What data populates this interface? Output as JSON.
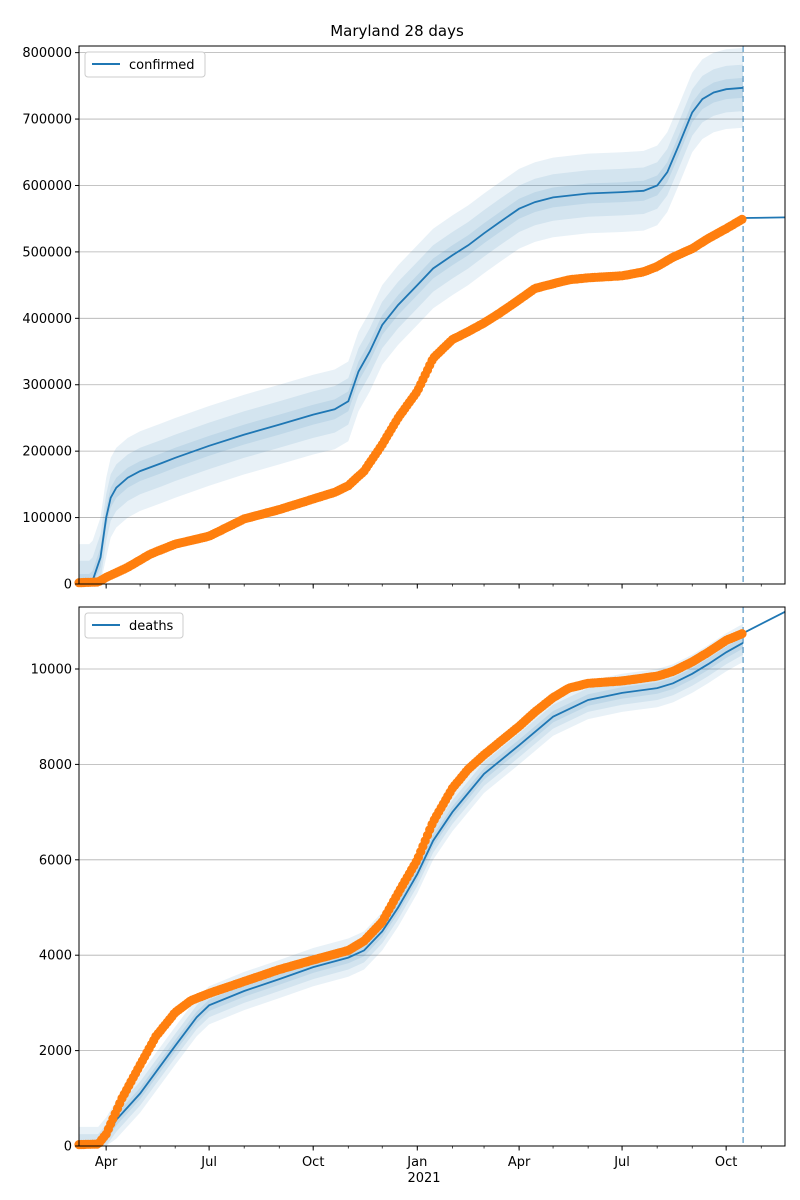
{
  "colors": {
    "model": "#1f77b4",
    "band": "#1f77b4",
    "observed": "#ff7f0e",
    "grid": "#b0b0b0",
    "axis": "#000000"
  },
  "x_axis": {
    "date_range": [
      "2020-03-08",
      "2021-11-22"
    ],
    "ticks": [
      {
        "date": "2020-04-01",
        "label": "Apr"
      },
      {
        "date": "2020-07-01",
        "label": "Jul"
      },
      {
        "date": "2020-10-01",
        "label": "Oct"
      },
      {
        "date": "2021-01-01",
        "label": "Jan"
      },
      {
        "date": "2021-04-01",
        "label": "Apr"
      },
      {
        "date": "2021-07-01",
        "label": "Jul"
      },
      {
        "date": "2021-10-01",
        "label": "Oct"
      }
    ],
    "year_label": "2021",
    "forecast_date": "2021-10-16"
  },
  "chart_data": [
    {
      "type": "line",
      "title": "Maryland 28 days",
      "legend": {
        "label": "confirmed",
        "placement": "top-left"
      },
      "ylim": [
        0,
        810000
      ],
      "yticks": [
        "0",
        "100000",
        "200000",
        "300000",
        "400000",
        "500000",
        "600000",
        "700000",
        "800000"
      ],
      "grid": "horizontal",
      "model_series": {
        "name": "confirmed",
        "x": [
          "2020-03-08",
          "2020-03-17",
          "2020-03-20",
          "2020-03-27",
          "2020-04-01",
          "2020-04-05",
          "2020-04-10",
          "2020-04-20",
          "2020-05-01",
          "2020-05-20",
          "2020-06-01",
          "2020-07-01",
          "2020-08-01",
          "2020-09-01",
          "2020-10-01",
          "2020-10-20",
          "2020-11-01",
          "2020-11-10",
          "2020-11-20",
          "2020-12-01",
          "2020-12-15",
          "2021-01-01",
          "2021-01-15",
          "2021-02-01",
          "2021-02-15",
          "2021-03-01",
          "2021-03-15",
          "2021-04-01",
          "2021-04-15",
          "2021-05-01",
          "2021-06-01",
          "2021-07-01",
          "2021-07-20",
          "2021-08-01",
          "2021-08-10",
          "2021-08-20",
          "2021-09-01",
          "2021-09-10",
          "2021-09-20",
          "2021-10-01",
          "2021-10-16"
        ],
        "values": [
          0,
          0,
          5000,
          40000,
          100000,
          130000,
          145000,
          160000,
          170000,
          182000,
          190000,
          208000,
          225000,
          240000,
          255000,
          263000,
          275000,
          320000,
          350000,
          390000,
          420000,
          450000,
          475000,
          495000,
          510000,
          528000,
          545000,
          565000,
          575000,
          582000,
          588000,
          590000,
          592000,
          600000,
          620000,
          660000,
          710000,
          730000,
          740000,
          745000,
          747000
        ]
      },
      "band_halfwidths": [
        15000,
        35000,
        60000
      ],
      "observed_series": {
        "name": "observed",
        "x": [
          "2020-03-08",
          "2020-03-25",
          "2020-04-01",
          "2020-04-20",
          "2020-05-10",
          "2020-06-01",
          "2020-07-01",
          "2020-08-01",
          "2020-09-01",
          "2020-10-01",
          "2020-10-20",
          "2020-11-01",
          "2020-11-15",
          "2020-12-01",
          "2020-12-15",
          "2021-01-01",
          "2021-01-15",
          "2021-02-01",
          "2021-02-15",
          "2021-03-01",
          "2021-03-15",
          "2021-04-01",
          "2021-04-15",
          "2021-05-01",
          "2021-05-15",
          "2021-06-01",
          "2021-07-01",
          "2021-07-20",
          "2021-08-01",
          "2021-08-15",
          "2021-09-01",
          "2021-09-15",
          "2021-10-01",
          "2021-10-16"
        ],
        "values": [
          2000,
          3000,
          10000,
          25000,
          45000,
          60000,
          72000,
          98000,
          112000,
          128000,
          138000,
          148000,
          170000,
          210000,
          250000,
          290000,
          340000,
          368000,
          380000,
          393000,
          408000,
          428000,
          445000,
          452000,
          458000,
          461000,
          464000,
          470000,
          478000,
          492000,
          505000,
          520000,
          535000,
          550000
        ]
      },
      "tail_series": {
        "x": [
          "2021-10-16",
          "2021-11-22"
        ],
        "values": [
          551000,
          552000
        ]
      }
    },
    {
      "type": "line",
      "title": "",
      "legend": {
        "label": "deaths",
        "placement": "top-left"
      },
      "ylim": [
        0,
        11300
      ],
      "yticks": [
        "0",
        "2000",
        "4000",
        "6000",
        "8000",
        "10000"
      ],
      "grid": "horizontal",
      "model_series": {
        "name": "deaths",
        "x": [
          "2020-03-08",
          "2020-03-25",
          "2020-04-01",
          "2020-04-10",
          "2020-05-01",
          "2020-06-01",
          "2020-06-20",
          "2020-07-01",
          "2020-08-01",
          "2020-09-01",
          "2020-10-01",
          "2020-11-01",
          "2020-11-15",
          "2020-12-01",
          "2020-12-15",
          "2021-01-01",
          "2021-01-15",
          "2021-02-01",
          "2021-02-15",
          "2021-03-01",
          "2021-04-01",
          "2021-05-01",
          "2021-06-01",
          "2021-07-01",
          "2021-08-01",
          "2021-08-15",
          "2021-09-01",
          "2021-09-15",
          "2021-10-01",
          "2021-10-16"
        ],
        "values": [
          0,
          0,
          200,
          550,
          1100,
          2100,
          2700,
          2950,
          3250,
          3500,
          3750,
          3950,
          4100,
          4500,
          5000,
          5700,
          6400,
          7000,
          7400,
          7800,
          8400,
          9000,
          9350,
          9500,
          9600,
          9700,
          9900,
          10100,
          10350,
          10550
        ]
      },
      "band_halfwidths": [
        120,
        250,
        400
      ],
      "observed_series": {
        "name": "observed",
        "x": [
          "2020-03-08",
          "2020-03-25",
          "2020-04-01",
          "2020-04-15",
          "2020-05-01",
          "2020-05-15",
          "2020-06-01",
          "2020-06-15",
          "2020-07-01",
          "2020-08-01",
          "2020-09-01",
          "2020-10-01",
          "2020-11-01",
          "2020-11-15",
          "2020-12-01",
          "2020-12-15",
          "2021-01-01",
          "2021-01-15",
          "2021-02-01",
          "2021-02-15",
          "2021-03-01",
          "2021-04-01",
          "2021-04-15",
          "2021-05-01",
          "2021-05-15",
          "2021-06-01",
          "2021-07-01",
          "2021-08-01",
          "2021-08-15",
          "2021-09-01",
          "2021-09-15",
          "2021-10-01",
          "2021-10-16"
        ],
        "values": [
          30,
          40,
          250,
          1000,
          1700,
          2300,
          2800,
          3050,
          3200,
          3450,
          3700,
          3900,
          4100,
          4300,
          4700,
          5300,
          6000,
          6800,
          7500,
          7900,
          8200,
          8800,
          9100,
          9400,
          9600,
          9700,
          9750,
          9850,
          9950,
          10150,
          10350,
          10600,
          10750
        ]
      },
      "tail_series": {
        "x": [
          "2021-10-16",
          "2021-11-22"
        ],
        "values": [
          10750,
          11200
        ]
      }
    }
  ]
}
